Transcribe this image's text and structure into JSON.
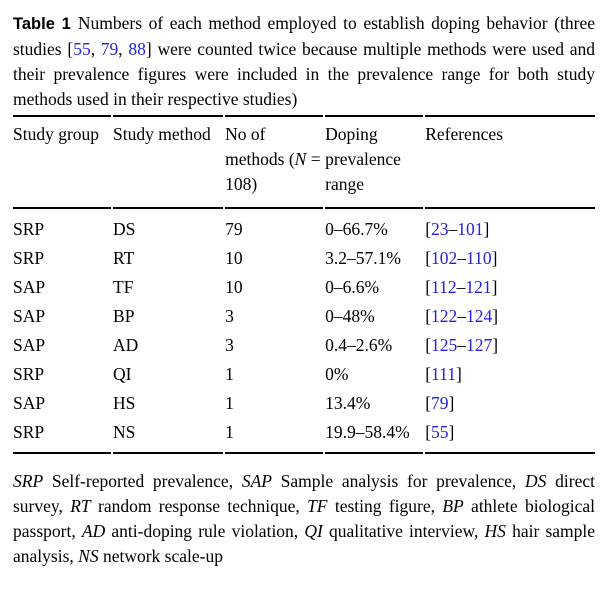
{
  "theme": {
    "page-bg": "#ffffff",
    "text": "#000000",
    "rule": "#000000",
    "link": "#2323dc"
  },
  "caption": {
    "segments": [
      {
        "t": "Table 1",
        "s": "bold-sans"
      },
      {
        "t": "Numbers of each method employed to establish doping behavior (three studies ["
      },
      {
        "t": "55",
        "s": "link"
      },
      {
        "t": ", "
      },
      {
        "t": "79",
        "s": "link"
      },
      {
        "t": ", "
      },
      {
        "t": "88",
        "s": "link"
      },
      {
        "t": "] were counted twice because multiple methods were used and their prevalence figures were included in the prevalence range for both study methods used in their respective studies)"
      }
    ]
  },
  "table": {
    "headers": {
      "study_group": "Study group",
      "study_method": "Study method",
      "no_of_methods": [
        {
          "t": "No of methods ("
        },
        {
          "t": "N",
          "s": "italic"
        },
        {
          "t": " = 108)"
        }
      ],
      "doping_prevalence": "Doping prevalence range",
      "references": "References"
    },
    "rows": [
      {
        "group": "SRP",
        "method": "DS",
        "n": "79",
        "range": "0–66.7%",
        "ref": [
          {
            "t": "["
          },
          {
            "t": "23",
            "s": "link"
          },
          {
            "t": "–"
          },
          {
            "t": "101",
            "s": "link"
          },
          {
            "t": "]"
          }
        ]
      },
      {
        "group": "SRP",
        "method": "RT",
        "n": "10",
        "range": "3.2–57.1%",
        "ref": [
          {
            "t": "["
          },
          {
            "t": "102",
            "s": "link"
          },
          {
            "t": "–"
          },
          {
            "t": "110",
            "s": "link"
          },
          {
            "t": "]"
          }
        ]
      },
      {
        "group": "SAP",
        "method": "TF",
        "n": "10",
        "range": "0–6.6%",
        "ref": [
          {
            "t": "["
          },
          {
            "t": "112",
            "s": "link"
          },
          {
            "t": "–"
          },
          {
            "t": "121",
            "s": "link"
          },
          {
            "t": "]"
          }
        ]
      },
      {
        "group": "SAP",
        "method": "BP",
        "n": "3",
        "range": "0–48%",
        "ref": [
          {
            "t": "["
          },
          {
            "t": "122",
            "s": "link"
          },
          {
            "t": "–"
          },
          {
            "t": "124",
            "s": "link"
          },
          {
            "t": "]"
          }
        ]
      },
      {
        "group": "SAP",
        "method": "AD",
        "n": "3",
        "range": "0.4–2.6%",
        "ref": [
          {
            "t": "["
          },
          {
            "t": "125",
            "s": "link"
          },
          {
            "t": "–"
          },
          {
            "t": "127",
            "s": "link"
          },
          {
            "t": "]"
          }
        ]
      },
      {
        "group": "SRP",
        "method": "QI",
        "n": "1",
        "range": "0%",
        "ref": [
          {
            "t": "["
          },
          {
            "t": "111",
            "s": "link"
          },
          {
            "t": "]"
          }
        ]
      },
      {
        "group": "SAP",
        "method": "HS",
        "n": "1",
        "range": "13.4%",
        "ref": [
          {
            "t": "["
          },
          {
            "t": "79",
            "s": "link"
          },
          {
            "t": "]"
          }
        ]
      },
      {
        "group": "SRP",
        "method": "NS",
        "n": "1",
        "range": "19.9–58.4%",
        "ref": [
          {
            "t": "["
          },
          {
            "t": "55",
            "s": "link"
          },
          {
            "t": "]"
          }
        ]
      }
    ]
  },
  "footnote": {
    "segments": [
      {
        "t": "SRP",
        "s": "italic"
      },
      {
        "t": " Self-reported prevalence, "
      },
      {
        "t": "SAP",
        "s": "italic"
      },
      {
        "t": " Sample analysis for prevalence, "
      },
      {
        "t": "DS",
        "s": "italic"
      },
      {
        "t": " direct survey, "
      },
      {
        "t": "RT",
        "s": "italic"
      },
      {
        "t": " random response technique, "
      },
      {
        "t": "TF",
        "s": "italic"
      },
      {
        "t": " testing figure, "
      },
      {
        "t": "BP",
        "s": "italic"
      },
      {
        "t": " athlete biological passport, "
      },
      {
        "t": "AD",
        "s": "italic"
      },
      {
        "t": " anti-doping rule violation, "
      },
      {
        "t": "QI",
        "s": "italic"
      },
      {
        "t": " qualitative interview, "
      },
      {
        "t": "HS",
        "s": "italic"
      },
      {
        "t": " hair sample analysis, "
      },
      {
        "t": "NS",
        "s": "italic"
      },
      {
        "t": " network scale-up"
      }
    ]
  }
}
